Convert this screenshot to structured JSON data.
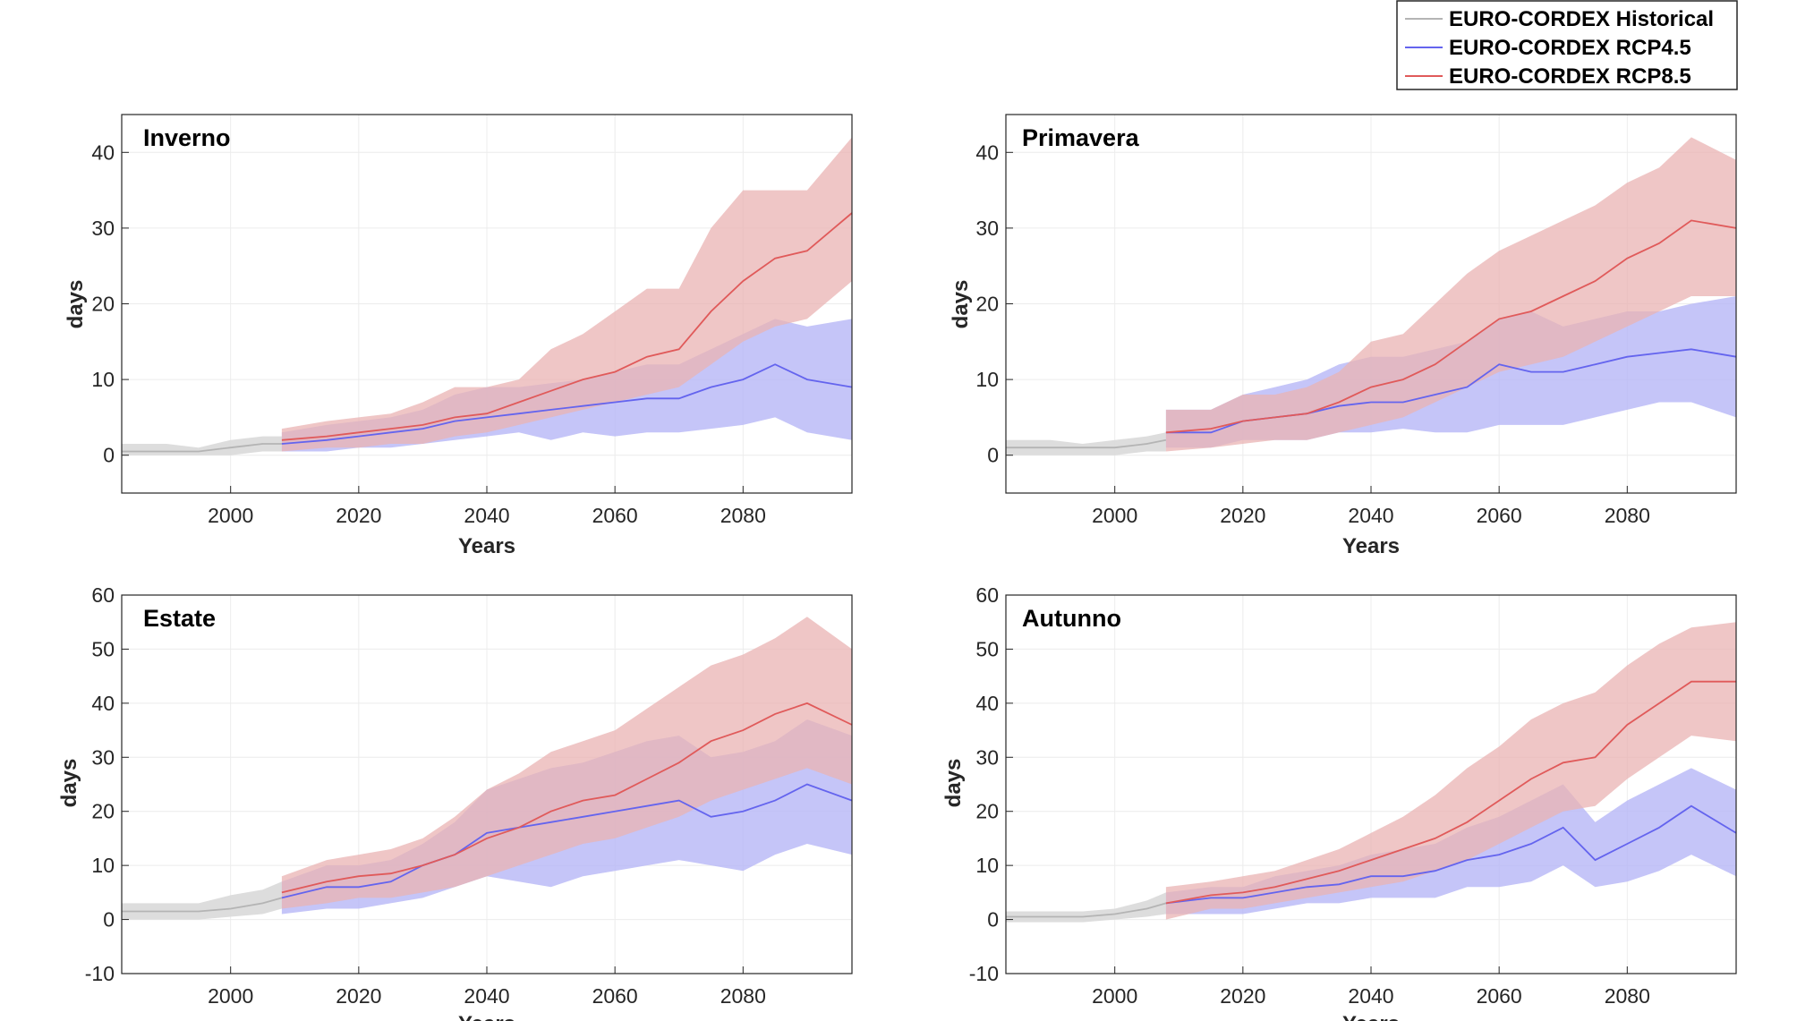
{
  "legend": {
    "entries": [
      {
        "label": "EURO-CORDEX Historical",
        "color": "#b4b4b4"
      },
      {
        "label": "EURO-CORDEX RCP4.5",
        "color": "#6464ee"
      },
      {
        "label": "EURO-CORDEX RCP8.5",
        "color": "#e05a5a"
      }
    ]
  },
  "colors": {
    "historical_line": "#b4b4b4",
    "historical_band": "#d9d9d9",
    "rcp45_line": "#6464ee",
    "rcp45_band": "#b7b7f6",
    "rcp85_line": "#e05a5a",
    "rcp85_band": "#eab3b3",
    "overlap_band": "#cf9dbf"
  },
  "chart_data": [
    {
      "type": "line",
      "title": "Inverno",
      "xlabel": "Years",
      "ylabel": "days",
      "xlim": [
        1983,
        2097
      ],
      "ylim": [
        -5,
        45
      ],
      "xticks": [
        2000,
        2020,
        2040,
        2060,
        2080
      ],
      "yticks": [
        0,
        10,
        20,
        30,
        40
      ],
      "grid": true,
      "series": [
        {
          "name": "EURO-CORDEX Historical",
          "x": [
            1983,
            1990,
            1995,
            2000,
            2005,
            2008
          ],
          "mean": [
            0.5,
            0.5,
            0.5,
            1,
            1.5,
            1.5
          ],
          "low": [
            0,
            0,
            0,
            0,
            0.5,
            0.5
          ],
          "high": [
            1.5,
            1.5,
            1,
            2,
            2.5,
            2.5
          ]
        },
        {
          "name": "EURO-CORDEX RCP4.5",
          "x": [
            2008,
            2015,
            2020,
            2025,
            2030,
            2035,
            2040,
            2045,
            2050,
            2055,
            2060,
            2065,
            2070,
            2075,
            2080,
            2085,
            2090,
            2097
          ],
          "mean": [
            1.5,
            2,
            2.5,
            3,
            3.5,
            4.5,
            5,
            5.5,
            6,
            6.5,
            7,
            7.5,
            7.5,
            9,
            10,
            12,
            10,
            9
          ],
          "low": [
            0.5,
            0.5,
            1,
            1,
            1.5,
            2,
            2.5,
            3,
            2,
            3,
            2.5,
            3,
            3,
            3.5,
            4,
            5,
            3,
            2
          ],
          "high": [
            3,
            4,
            4.5,
            5,
            6,
            8,
            9,
            9,
            9.5,
            10,
            11,
            12,
            12,
            14,
            16,
            18,
            17,
            18
          ]
        },
        {
          "name": "EURO-CORDEX RCP8.5",
          "x": [
            2008,
            2015,
            2020,
            2025,
            2030,
            2035,
            2040,
            2045,
            2050,
            2055,
            2060,
            2065,
            2070,
            2075,
            2080,
            2085,
            2090,
            2097
          ],
          "mean": [
            2,
            2.5,
            3,
            3.5,
            4,
            5,
            5.5,
            7,
            8.5,
            10,
            11,
            13,
            14,
            19,
            23,
            26,
            27,
            32
          ],
          "low": [
            0.5,
            1,
            1,
            1.5,
            1.5,
            2.5,
            3,
            4,
            5,
            6,
            7,
            8,
            9,
            12,
            15,
            17,
            18,
            23
          ],
          "high": [
            3.5,
            4.5,
            5,
            5.5,
            7,
            9,
            9,
            10,
            14,
            16,
            19,
            22,
            22,
            30,
            35,
            35,
            35,
            42
          ]
        }
      ]
    },
    {
      "type": "line",
      "title": "Primavera",
      "xlabel": "Years",
      "ylabel": "days",
      "xlim": [
        1983,
        2097
      ],
      "ylim": [
        -5,
        45
      ],
      "xticks": [
        2000,
        2020,
        2040,
        2060,
        2080
      ],
      "yticks": [
        0,
        10,
        20,
        30,
        40
      ],
      "grid": true,
      "series": [
        {
          "name": "EURO-CORDEX Historical",
          "x": [
            1983,
            1990,
            1995,
            2000,
            2005,
            2008
          ],
          "mean": [
            1,
            1,
            1,
            1,
            1.5,
            2
          ],
          "low": [
            0,
            0,
            0,
            0,
            0.5,
            0.5
          ],
          "high": [
            2,
            2,
            1.5,
            2,
            2.5,
            3
          ]
        },
        {
          "name": "EURO-CORDEX RCP4.5",
          "x": [
            2008,
            2015,
            2020,
            2025,
            2030,
            2035,
            2040,
            2045,
            2050,
            2055,
            2060,
            2065,
            2070,
            2075,
            2080,
            2085,
            2090,
            2097
          ],
          "mean": [
            3,
            3,
            4.5,
            5,
            5.5,
            6.5,
            7,
            7,
            8,
            9,
            12,
            11,
            11,
            12,
            13,
            13.5,
            14,
            13
          ],
          "low": [
            1,
            1,
            2,
            2,
            2,
            3,
            3,
            3.5,
            3,
            3,
            4,
            4,
            4,
            5,
            6,
            7,
            7,
            5
          ],
          "high": [
            6,
            6,
            8,
            9,
            10,
            12,
            13,
            13,
            14,
            15,
            18,
            19,
            17,
            18,
            19,
            19,
            20,
            21
          ]
        },
        {
          "name": "EURO-CORDEX RCP8.5",
          "x": [
            2008,
            2015,
            2020,
            2025,
            2030,
            2035,
            2040,
            2045,
            2050,
            2055,
            2060,
            2065,
            2070,
            2075,
            2080,
            2085,
            2090,
            2097
          ],
          "mean": [
            3,
            3.5,
            4.5,
            5,
            5.5,
            7,
            9,
            10,
            12,
            15,
            18,
            19,
            21,
            23,
            26,
            28,
            31,
            30
          ],
          "low": [
            0.5,
            1,
            1.5,
            2,
            2,
            3,
            4,
            5,
            7,
            9,
            11,
            12,
            13,
            15,
            17,
            19,
            21,
            21
          ],
          "high": [
            6,
            6,
            8,
            8,
            9,
            11,
            15,
            16,
            20,
            24,
            27,
            29,
            31,
            33,
            36,
            38,
            42,
            39
          ]
        }
      ]
    },
    {
      "type": "line",
      "title": "Estate",
      "xlabel": "Years",
      "ylabel": "days",
      "xlim": [
        1983,
        2097
      ],
      "ylim": [
        -10,
        60
      ],
      "xticks": [
        2000,
        2020,
        2040,
        2060,
        2080
      ],
      "yticks": [
        -10,
        0,
        10,
        20,
        30,
        40,
        50,
        60
      ],
      "grid": true,
      "series": [
        {
          "name": "EURO-CORDEX Historical",
          "x": [
            1983,
            1990,
            1995,
            2000,
            2005,
            2008
          ],
          "mean": [
            1.5,
            1.5,
            1.5,
            2,
            3,
            4
          ],
          "low": [
            0,
            0,
            0,
            0.5,
            1,
            2
          ],
          "high": [
            3,
            3,
            3,
            4.5,
            5.5,
            7
          ]
        },
        {
          "name": "EURO-CORDEX RCP4.5",
          "x": [
            2008,
            2015,
            2020,
            2025,
            2030,
            2035,
            2040,
            2045,
            2050,
            2055,
            2060,
            2065,
            2070,
            2075,
            2080,
            2085,
            2090,
            2097
          ],
          "mean": [
            4,
            6,
            6,
            7,
            10,
            12,
            16,
            17,
            18,
            19,
            20,
            21,
            22,
            19,
            20,
            22,
            25,
            22
          ],
          "low": [
            1,
            2,
            2,
            3,
            4,
            6,
            8,
            7,
            6,
            8,
            9,
            10,
            11,
            10,
            9,
            12,
            14,
            12
          ],
          "high": [
            7,
            10,
            10,
            11,
            14,
            18,
            24,
            26,
            28,
            29,
            31,
            33,
            34,
            30,
            31,
            33,
            37,
            34
          ]
        },
        {
          "name": "EURO-CORDEX RCP8.5",
          "x": [
            2008,
            2015,
            2020,
            2025,
            2030,
            2035,
            2040,
            2045,
            2050,
            2055,
            2060,
            2065,
            2070,
            2075,
            2080,
            2085,
            2090,
            2097
          ],
          "mean": [
            5,
            7,
            8,
            8.5,
            10,
            12,
            15,
            17,
            20,
            22,
            23,
            26,
            29,
            33,
            35,
            38,
            40,
            36
          ],
          "low": [
            2,
            3,
            4,
            4,
            5,
            6,
            8,
            10,
            12,
            14,
            15,
            17,
            19,
            22,
            24,
            26,
            28,
            25
          ],
          "high": [
            8,
            11,
            12,
            13,
            15,
            19,
            24,
            27,
            31,
            33,
            35,
            39,
            43,
            47,
            49,
            52,
            56,
            50
          ]
        }
      ]
    },
    {
      "type": "line",
      "title": "Autunno",
      "xlabel": "Years",
      "ylabel": "days",
      "xlim": [
        1983,
        2097
      ],
      "ylim": [
        -10,
        60
      ],
      "xticks": [
        2000,
        2020,
        2040,
        2060,
        2080
      ],
      "yticks": [
        -10,
        0,
        10,
        20,
        30,
        40,
        50,
        60
      ],
      "grid": true,
      "series": [
        {
          "name": "EURO-CORDEX Historical",
          "x": [
            1983,
            1990,
            1995,
            2000,
            2005,
            2008
          ],
          "mean": [
            0.5,
            0.5,
            0.5,
            1,
            2,
            3
          ],
          "low": [
            -0.5,
            -0.5,
            -0.5,
            0,
            0.5,
            1
          ],
          "high": [
            1.5,
            1.5,
            1.5,
            2,
            3.5,
            5
          ]
        },
        {
          "name": "EURO-CORDEX RCP4.5",
          "x": [
            2008,
            2015,
            2020,
            2025,
            2030,
            2035,
            2040,
            2045,
            2050,
            2055,
            2060,
            2065,
            2070,
            2075,
            2080,
            2085,
            2090,
            2097
          ],
          "mean": [
            3,
            4,
            4,
            5,
            6,
            6.5,
            8,
            8,
            9,
            11,
            12,
            14,
            17,
            11,
            14,
            17,
            21,
            16
          ],
          "low": [
            1,
            1,
            1,
            2,
            3,
            3,
            4,
            4,
            4,
            6,
            6,
            7,
            10,
            6,
            7,
            9,
            12,
            8
          ],
          "high": [
            5,
            6,
            6,
            8,
            9,
            10,
            12,
            13,
            14,
            17,
            19,
            22,
            25,
            18,
            22,
            25,
            28,
            24
          ]
        },
        {
          "name": "EURO-CORDEX RCP8.5",
          "x": [
            2008,
            2015,
            2020,
            2025,
            2030,
            2035,
            2040,
            2045,
            2050,
            2055,
            2060,
            2065,
            2070,
            2075,
            2080,
            2085,
            2090,
            2097
          ],
          "mean": [
            3,
            4.5,
            5,
            6,
            7.5,
            9,
            11,
            13,
            15,
            18,
            22,
            26,
            29,
            30,
            36,
            40,
            44,
            44
          ],
          "low": [
            0,
            2,
            2,
            3,
            4,
            5,
            6,
            7,
            9,
            11,
            14,
            17,
            20,
            21,
            26,
            30,
            34,
            33
          ],
          "high": [
            6,
            7,
            8,
            9,
            11,
            13,
            16,
            19,
            23,
            28,
            32,
            37,
            40,
            42,
            47,
            51,
            54,
            55
          ]
        }
      ]
    }
  ]
}
